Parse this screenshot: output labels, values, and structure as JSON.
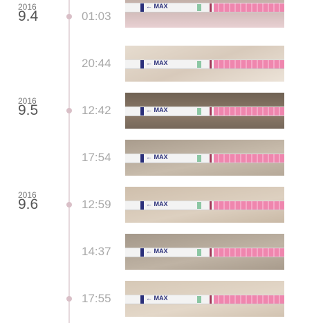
{
  "timeline": [
    {
      "year": "2016",
      "date": "9.4",
      "entries": [
        {
          "time": "01:03",
          "strip_label": "← MAX"
        },
        {
          "time": "20:44",
          "strip_label": "← MAX"
        }
      ]
    },
    {
      "year": "2016",
      "date": "9.5",
      "entries": [
        {
          "time": "12:42",
          "strip_label": "← MAX"
        },
        {
          "time": "17:54",
          "strip_label": "← MAX"
        }
      ]
    },
    {
      "year": "2016",
      "date": "9.6",
      "entries": [
        {
          "time": "12:59",
          "strip_label": "← MAX"
        },
        {
          "time": "14:37",
          "strip_label": "← MAX"
        },
        {
          "time": "17:55",
          "strip_label": "← MAX"
        }
      ]
    }
  ]
}
